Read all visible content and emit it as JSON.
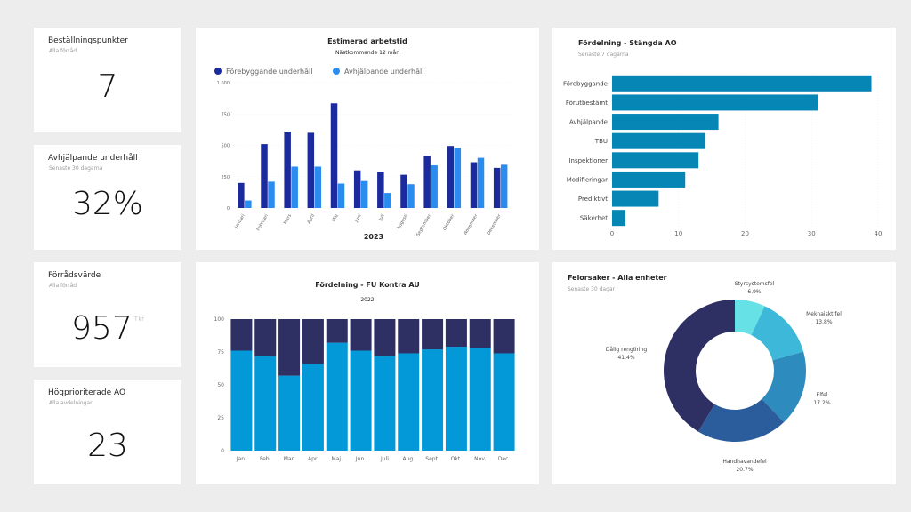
{
  "kpis": {
    "bestallningspunkter": {
      "title": "Beställningspunkter",
      "subtitle": "Alla förråd",
      "value": "7"
    },
    "avhjalpande": {
      "title": "Avhjälpande underhåll",
      "subtitle": "Senaste 30 dagarna",
      "value": "32%"
    },
    "forradsvarde": {
      "title": "Förrådsvärde",
      "subtitle": "Alla förråd",
      "value": "957",
      "unit": "Tkr"
    },
    "hogprioriterade": {
      "title": "Högprioriterade AO",
      "subtitle": "Alla avdelningar",
      "value": "23"
    }
  },
  "colors": {
    "background": "#ededed",
    "card": "#ffffff",
    "dark_blue": "#1b2a9c",
    "light_blue": "#2b8cf0",
    "teal": "#0586b5",
    "navy": "#2e3064",
    "cyan": "#0398d8",
    "donut": [
      "#66e2e6",
      "#3eb8d9",
      "#2d8bbd",
      "#2b5d9d",
      "#2e3064"
    ]
  },
  "chart_data": [
    {
      "type": "bar",
      "title": "Estimerad arbetstid",
      "subtitle": "Nästkommande 12 mån",
      "xlabel": "2023",
      "ylabel": "",
      "categories": [
        "Januari",
        "Februari",
        "Mars",
        "April",
        "Maj",
        "Juni",
        "Juli",
        "Augusti",
        "September",
        "Oktober",
        "November",
        "December"
      ],
      "series": [
        {
          "name": "Förebyggande underhåll",
          "color": "#1b2a9c",
          "values": [
            200,
            510,
            610,
            600,
            835,
            300,
            290,
            265,
            415,
            495,
            365,
            320
          ]
        },
        {
          "name": "Avhjälpande underhåll",
          "color": "#2b8cf0",
          "values": [
            60,
            210,
            330,
            330,
            195,
            215,
            120,
            190,
            340,
            480,
            400,
            345
          ]
        }
      ],
      "ylim": [
        0,
        1000
      ],
      "yticks": [
        0,
        250,
        500,
        750,
        1000
      ],
      "ytick_labels": [
        "0",
        "250",
        "500",
        "750",
        "1 000"
      ],
      "legend": "top-left",
      "grid": true
    },
    {
      "type": "bar",
      "orientation": "horizontal",
      "title": "Fördelning - Stängda AO",
      "subtitle": "Senaste 7 dagarna",
      "categories": [
        "Förebyggande",
        "Förutbestämt",
        "Avhjälpande",
        "TBU",
        "Inspektioner",
        "Modifieringar",
        "Prediktivt",
        "Säkerhet"
      ],
      "values": [
        39,
        31,
        16,
        14,
        13,
        11,
        7,
        2
      ],
      "xlim": [
        0,
        40
      ],
      "xticks": [
        0,
        10,
        20,
        30,
        40
      ],
      "color": "#0586b5",
      "grid": true
    },
    {
      "type": "bar",
      "stacked": true,
      "title": "Fördelning - FU Kontra AU",
      "subtitle": "2022",
      "categories": [
        "Jan.",
        "Feb.",
        "Mar.",
        "Apr.",
        "Maj.",
        "Jun.",
        "Juli",
        "Aug.",
        "Sept.",
        "Okt.",
        "Nov.",
        "Dec."
      ],
      "series": [
        {
          "color": "#0398d8",
          "values": [
            76,
            72,
            57,
            66,
            82,
            76,
            72,
            74,
            77,
            79,
            78,
            74
          ]
        },
        {
          "color": "#2e3064",
          "values": [
            24,
            28,
            43,
            34,
            18,
            24,
            28,
            26,
            23,
            21,
            22,
            26
          ]
        }
      ],
      "ylim": [
        0,
        100
      ],
      "yticks": [
        0,
        25,
        50,
        75,
        100
      ],
      "grid": true
    },
    {
      "type": "pie",
      "donut": true,
      "title": "Felorsaker - Alla enheter",
      "subtitle": "Senaste 30 dagar",
      "slices": [
        {
          "label": "Styrsystemsfel",
          "value": 6.9,
          "pct": "6.9%",
          "color": "#66e2e6"
        },
        {
          "label": "Meknaiskt fel",
          "value": 13.8,
          "pct": "13.8%",
          "color": "#3eb8d9"
        },
        {
          "label": "Elfel",
          "value": 17.2,
          "pct": "17.2%",
          "color": "#2d8bbd"
        },
        {
          "label": "Handhavandefel",
          "value": 20.7,
          "pct": "20.7%",
          "color": "#2b5d9d"
        },
        {
          "label": "Dålig rengöring",
          "value": 41.4,
          "pct": "41.4%",
          "color": "#2e3064"
        }
      ]
    }
  ]
}
